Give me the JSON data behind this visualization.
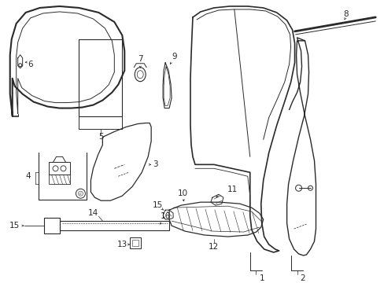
{
  "bg_color": "#ffffff",
  "line_color": "#2a2a2a",
  "fig_w": 4.89,
  "fig_h": 3.6,
  "dpi": 100
}
